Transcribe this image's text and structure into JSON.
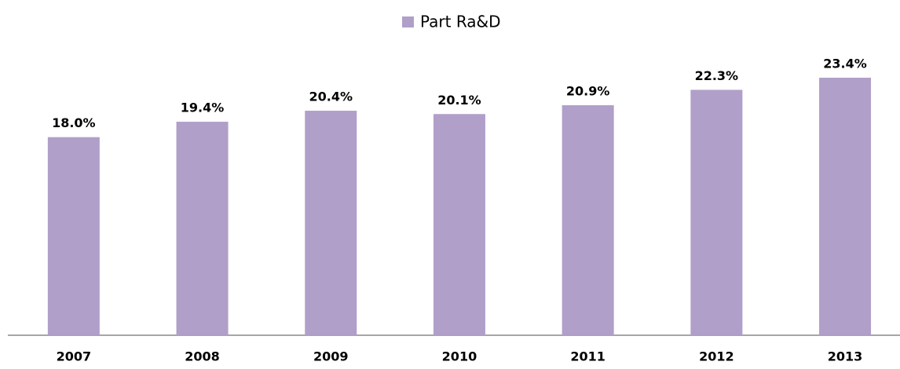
{
  "chart_data": {
    "type": "bar",
    "categories": [
      "2007",
      "2008",
      "2009",
      "2010",
      "2011",
      "2012",
      "2013"
    ],
    "series": [
      {
        "name": "Part Ra&D",
        "color": "#b09fc8",
        "values": [
          18.0,
          19.4,
          20.4,
          20.1,
          20.9,
          22.3,
          23.4
        ],
        "value_labels": [
          "18.0%",
          "19.4%",
          "20.4%",
          "20.1%",
          "20.9%",
          "22.3%",
          "23.4%"
        ]
      }
    ],
    "legend": "top"
  }
}
